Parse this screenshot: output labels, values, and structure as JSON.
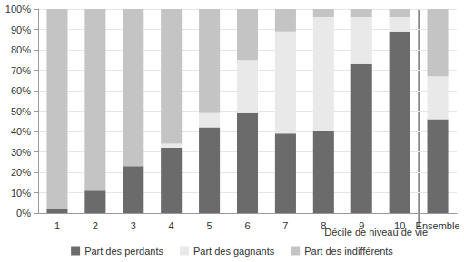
{
  "chart_data": {
    "type": "bar",
    "stacked": true,
    "x_label": "Décile de niveau de vie",
    "categories": [
      "1",
      "2",
      "3",
      "4",
      "5",
      "6",
      "7",
      "8",
      "9",
      "10",
      "Ensemble"
    ],
    "series": [
      {
        "name": "Part des perdants",
        "color": "#6b6b6b",
        "values": [
          2,
          11,
          23,
          32,
          42,
          49,
          39,
          40,
          73,
          89,
          46
        ]
      },
      {
        "name": "Part des gagnants",
        "color": "#e9e9e9",
        "values": [
          0,
          0,
          0,
          2,
          7,
          26,
          50,
          56,
          23,
          7,
          21
        ]
      },
      {
        "name": "Part des indifférents",
        "color": "#c4c4c4",
        "values": [
          98,
          89,
          77,
          66,
          51,
          25,
          11,
          4,
          4,
          4,
          33
        ]
      }
    ],
    "ylim": [
      0,
      100
    ],
    "yticks": [
      {
        "value": 0,
        "label": "0%"
      },
      {
        "value": 10,
        "label": "10%"
      },
      {
        "value": 20,
        "label": "20%"
      },
      {
        "value": 30,
        "label": "30%"
      },
      {
        "value": 40,
        "label": "40%"
      },
      {
        "value": 50,
        "label": "50%"
      },
      {
        "value": 60,
        "label": "60%"
      },
      {
        "value": 70,
        "label": "70%"
      },
      {
        "value": 80,
        "label": "80%"
      },
      {
        "value": 90,
        "label": "90%"
      },
      {
        "value": 100,
        "label": "100%"
      }
    ],
    "grid": true,
    "legend": "bottom"
  }
}
